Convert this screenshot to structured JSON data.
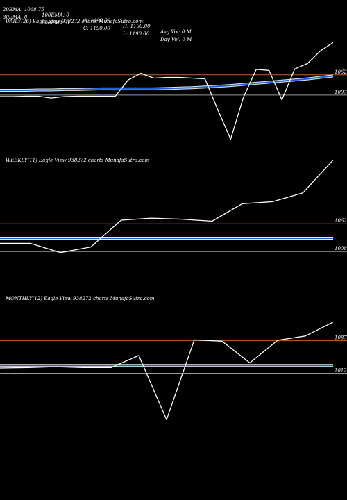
{
  "header": {
    "row1": [
      {
        "key": "20ema",
        "text": "20EMA: 1068.75"
      },
      {
        "key": "100ema",
        "text": "100EMA: 0"
      },
      {
        "key": "open",
        "text": "O: 1190.00"
      },
      {
        "key": "high",
        "text": "H: 1190.00"
      },
      {
        "key": "avgvol",
        "text": "Avg Vol: 0  M"
      }
    ],
    "row2": [
      {
        "key": "30ema",
        "text": "30EMA: 0"
      },
      {
        "key": "200ema",
        "text": "200EMA: 0"
      },
      {
        "key": "close",
        "text": "C: 1190.00"
      },
      {
        "key": "low",
        "text": "L: 1190.00"
      },
      {
        "key": "dayvol",
        "text": "Day Vol: 0  M"
      }
    ]
  },
  "colors": {
    "background": "#000000",
    "price": "#ffffff",
    "ema": "#1f5fd6",
    "level_upper": "#c0622a",
    "level_lower": "#9a9a9a"
  },
  "chart_data": [
    {
      "type": "line",
      "title": "DAILY(26) Eagle  View  938272  charts MunafaSutra.com",
      "series": [
        {
          "values": [
            1003,
            1003,
            1004,
            1004,
            999,
            1003,
            1004,
            1004,
            1004,
            1004,
            1048,
            1066,
            1053,
            1055,
            1055,
            1053,
            1051,
            967,
            887,
            1001,
            1077,
            1074,
            994,
            1078,
            1093,
            1127,
            1150
          ]
        },
        {
          "values": [
            1020,
            1020,
            1020,
            1021,
            1021,
            1022,
            1022,
            1023,
            1024,
            1024,
            1024,
            1024,
            1024,
            1025,
            1026,
            1027,
            1029,
            1031,
            1033,
            1036,
            1039,
            1042,
            1045,
            1048,
            1051,
            1055,
            1059
          ]
        }
      ],
      "levels": [
        {
          "value": 1062,
          "label": "1062",
          "color": "#c0622a"
        },
        {
          "value": 1007,
          "label": "1007",
          "color": "#9a9a9a"
        }
      ],
      "ylim": [
        850,
        1190
      ]
    },
    {
      "type": "line",
      "title": "WEEKLY(11) Eagle  View  938272  charts MunafaSutra.com",
      "series": [
        {
          "values": [
            1024,
            1024,
            1006,
            1017,
            1069,
            1073,
            1071,
            1067,
            1101,
            1105,
            1122,
            1186
          ]
        },
        {
          "values": [
            1034,
            1034,
            1034,
            1034,
            1034,
            1034,
            1034,
            1034,
            1034,
            1034,
            1034,
            1034
          ]
        }
      ],
      "levels": [
        {
          "value": 1062,
          "label": "1062",
          "color": "#c0622a"
        },
        {
          "value": 1008,
          "label": "1008",
          "color": "#9a9a9a"
        }
      ],
      "ylim": [
        930,
        1200
      ]
    },
    {
      "type": "line",
      "title": "MONTHLY(12) Eagle  View  938272  charts MunafaSutra.com",
      "series": [
        {
          "values": [
            1024,
            1025,
            1027,
            1025,
            1025,
            1053,
            905,
            1089,
            1086,
            1036,
            1088,
            1098,
            1130
          ]
        },
        {
          "values": [
            1030,
            1030,
            1030,
            1030,
            1030,
            1030,
            1030,
            1030,
            1030,
            1030,
            1030,
            1030,
            1030
          ]
        }
      ],
      "levels": [
        {
          "value": 1087,
          "label": "1087",
          "color": "#c0622a"
        },
        {
          "value": 1012,
          "label": "1012",
          "color": "#9a9a9a"
        }
      ],
      "ylim": [
        880,
        1200
      ]
    }
  ]
}
